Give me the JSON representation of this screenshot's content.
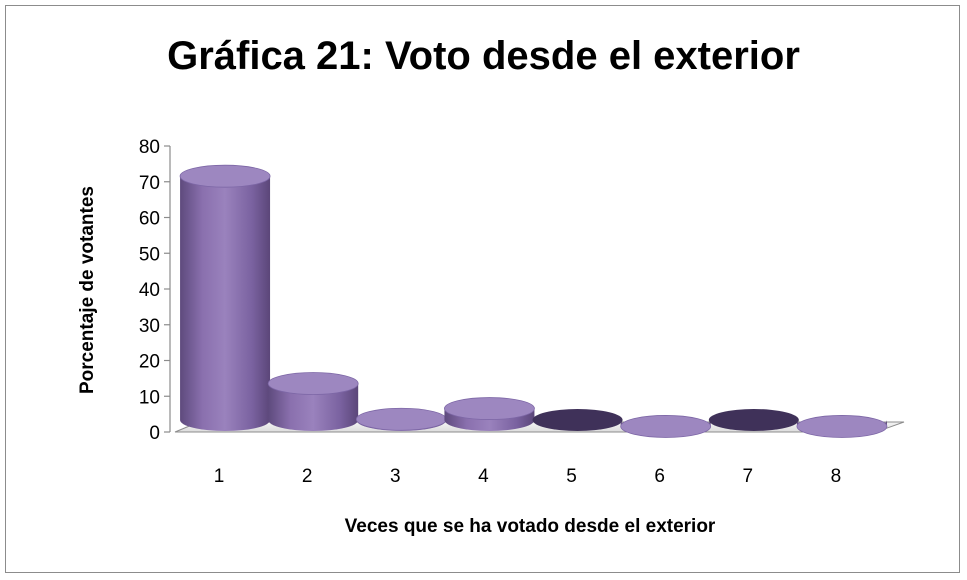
{
  "chart_data": {
    "type": "bar",
    "title": "Gráfica 21: Voto desde el exterior",
    "xlabel": "Veces que se ha votado desde el exterior",
    "ylabel": "Porcentaje de votantes",
    "categories": [
      "1",
      "2",
      "3",
      "4",
      "5",
      "6",
      "7",
      "8"
    ],
    "values": [
      71,
      13,
      3,
      6,
      0,
      1,
      0,
      1
    ],
    "ylim": [
      0,
      80
    ],
    "yticks": [
      "0",
      "10",
      "20",
      "30",
      "40",
      "50",
      "60",
      "70",
      "80"
    ],
    "grid": false,
    "legend": "none",
    "colors": {
      "bar_body": "#8064a2",
      "bar_top": "#9d87c0",
      "bar_zero": "#3f3159",
      "floor": "#f0f0f0",
      "axis": "#8c8c8c"
    }
  }
}
